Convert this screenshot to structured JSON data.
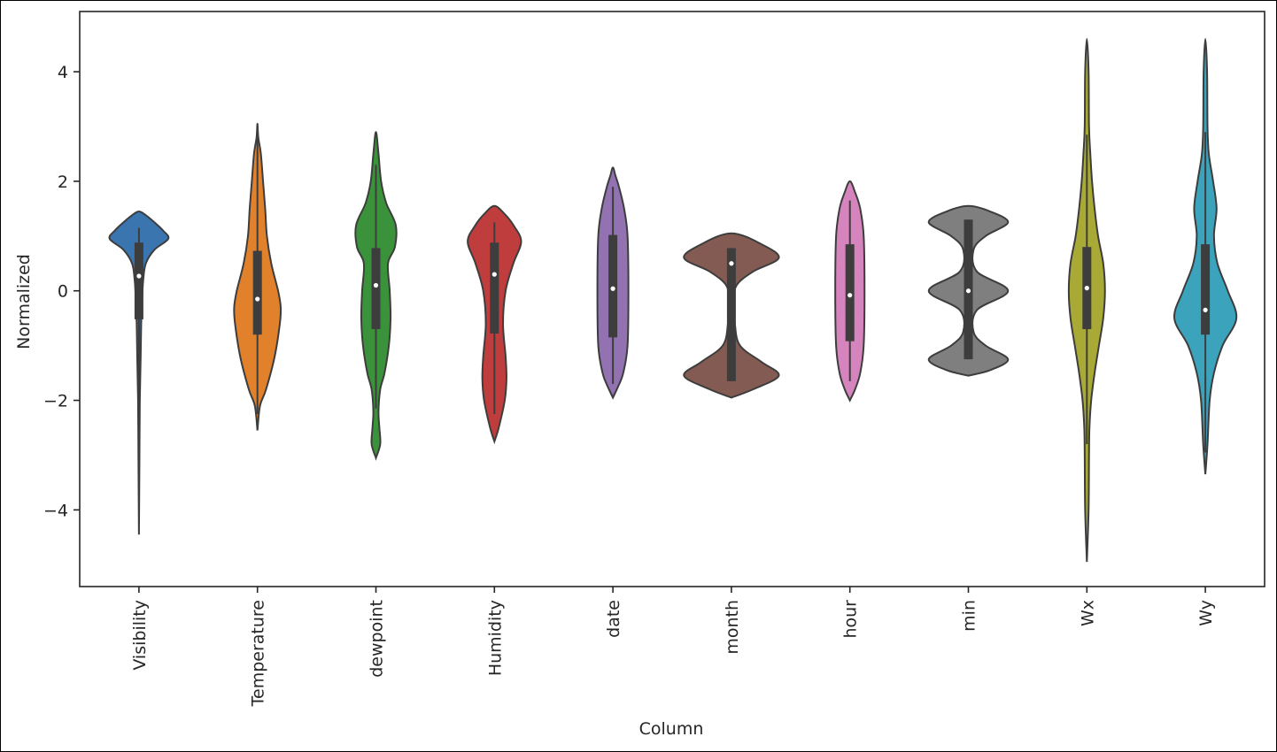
{
  "chart_data": {
    "type": "violin",
    "title": "",
    "xlabel": "Column",
    "ylabel": "Normalized",
    "ylim": [
      -5.4,
      5.1
    ],
    "yticks": [
      -4,
      -2,
      0,
      2,
      4
    ],
    "ytick_labels": [
      "−4",
      "−2",
      "0",
      "2",
      "4"
    ],
    "grid": false,
    "legend": "none",
    "categories": [
      "Visibility",
      "Temperature",
      "dewpoint",
      "Humidity",
      "date",
      "month",
      "hour",
      "min",
      "Wx",
      "Wy"
    ],
    "series": [
      {
        "color": "#3a75b0",
        "min": -4.45,
        "max": 1.45,
        "q1": -0.52,
        "median": 0.27,
        "q3": 0.88,
        "whisker_low": -2.5,
        "whisker_high": 1.15,
        "density": [
          [
            -4.45,
            0.0
          ],
          [
            -4.0,
            0.2
          ],
          [
            -3.0,
            0.6
          ],
          [
            -2.0,
            1.0
          ],
          [
            -1.2,
            2.0
          ],
          [
            -0.6,
            2.6
          ],
          [
            -0.2,
            3.5
          ],
          [
            0.2,
            5.0
          ],
          [
            0.5,
            8.0
          ],
          [
            0.75,
            18.0
          ],
          [
            0.95,
            34.0
          ],
          [
            1.1,
            28.0
          ],
          [
            1.25,
            18.0
          ],
          [
            1.38,
            8.0
          ],
          [
            1.45,
            0.0
          ]
        ]
      },
      {
        "color": "#e1812c",
        "min": -2.55,
        "max": 3.05,
        "q1": -0.8,
        "median": -0.15,
        "q3": 0.73,
        "whisker_low": -2.25,
        "whisker_high": 2.78,
        "density": [
          [
            -2.55,
            0.0
          ],
          [
            -2.1,
            3.0
          ],
          [
            -1.8,
            10.0
          ],
          [
            -1.2,
            20.0
          ],
          [
            -0.6,
            26.0
          ],
          [
            -0.3,
            27.0
          ],
          [
            0.0,
            24.0
          ],
          [
            0.5,
            16.0
          ],
          [
            1.0,
            11.0
          ],
          [
            1.5,
            9.0
          ],
          [
            2.0,
            6.5
          ],
          [
            2.5,
            4.0
          ],
          [
            2.8,
            1.0
          ],
          [
            3.05,
            0.0
          ]
        ]
      },
      {
        "color": "#3a923a",
        "min": -3.05,
        "max": 2.9,
        "q1": -0.7,
        "median": 0.1,
        "q3": 0.78,
        "whisker_low": -2.15,
        "whisker_high": 2.3,
        "density": [
          [
            -3.05,
            0.0
          ],
          [
            -2.8,
            5.0
          ],
          [
            -2.5,
            4.0
          ],
          [
            -2.2,
            3.0
          ],
          [
            -1.8,
            5.0
          ],
          [
            -1.5,
            10.0
          ],
          [
            -1.0,
            15.0
          ],
          [
            -0.5,
            17.0
          ],
          [
            0.0,
            16.0
          ],
          [
            0.5,
            14.0
          ],
          [
            0.8,
            22.0
          ],
          [
            1.2,
            23.0
          ],
          [
            1.6,
            12.0
          ],
          [
            2.0,
            6.0
          ],
          [
            2.5,
            3.0
          ],
          [
            2.9,
            0.0
          ]
        ]
      },
      {
        "color": "#c03d3e",
        "min": -2.75,
        "max": 1.55,
        "q1": -0.78,
        "median": 0.3,
        "q3": 0.88,
        "whisker_low": -2.25,
        "whisker_high": 1.25,
        "density": [
          [
            -2.75,
            0.0
          ],
          [
            -2.5,
            5.0
          ],
          [
            -2.0,
            12.0
          ],
          [
            -1.6,
            14.0
          ],
          [
            -1.2,
            13.0
          ],
          [
            -0.6,
            10.0
          ],
          [
            0.0,
            13.0
          ],
          [
            0.5,
            22.0
          ],
          [
            0.9,
            31.0
          ],
          [
            1.2,
            22.0
          ],
          [
            1.4,
            12.0
          ],
          [
            1.55,
            0.0
          ]
        ]
      },
      {
        "color": "#9372b2",
        "min": -1.95,
        "max": 2.25,
        "q1": -0.85,
        "median": 0.04,
        "q3": 1.02,
        "whisker_low": -1.7,
        "whisker_high": 1.9,
        "density": [
          [
            -1.95,
            0.0
          ],
          [
            -1.75,
            6.0
          ],
          [
            -1.5,
            12.0
          ],
          [
            -1.0,
            17.0
          ],
          [
            0.0,
            18.0
          ],
          [
            1.0,
            17.0
          ],
          [
            1.5,
            13.0
          ],
          [
            1.9,
            7.0
          ],
          [
            2.1,
            3.0
          ],
          [
            2.25,
            0.0
          ]
        ]
      },
      {
        "color": "#845b53",
        "min": -1.95,
        "max": 1.05,
        "q1": -1.65,
        "median": 0.5,
        "q3": 0.78,
        "whisker_low": -1.65,
        "whisker_high": 0.78,
        "density": [
          [
            -1.95,
            0.0
          ],
          [
            -1.8,
            25.0
          ],
          [
            -1.55,
            55.0
          ],
          [
            -1.3,
            35.0
          ],
          [
            -1.0,
            10.0
          ],
          [
            -0.6,
            4.0
          ],
          [
            -0.2,
            3.0
          ],
          [
            0.1,
            6.0
          ],
          [
            0.35,
            25.0
          ],
          [
            0.6,
            55.0
          ],
          [
            0.85,
            35.0
          ],
          [
            1.05,
            0.0
          ]
        ]
      },
      {
        "color": "#d684bd",
        "min": -2.0,
        "max": 2.0,
        "q1": -0.92,
        "median": -0.08,
        "q3": 0.85,
        "whisker_low": -1.65,
        "whisker_high": 1.65,
        "density": [
          [
            -2.0,
            0.0
          ],
          [
            -1.8,
            6.0
          ],
          [
            -1.5,
            12.0
          ],
          [
            -1.0,
            16.0
          ],
          [
            0.0,
            17.0
          ],
          [
            1.0,
            16.0
          ],
          [
            1.5,
            12.0
          ],
          [
            1.8,
            6.0
          ],
          [
            2.0,
            0.0
          ]
        ]
      },
      {
        "color": "#7f7f7f",
        "min": -1.55,
        "max": 1.55,
        "q1": -1.25,
        "median": 0.0,
        "q3": 1.3,
        "whisker_low": -1.25,
        "whisker_high": 1.3,
        "density": [
          [
            -1.55,
            0.0
          ],
          [
            -1.45,
            25.0
          ],
          [
            -1.25,
            46.0
          ],
          [
            -1.0,
            20.0
          ],
          [
            -0.75,
            6.0
          ],
          [
            -0.35,
            10.0
          ],
          [
            0.0,
            46.0
          ],
          [
            0.35,
            10.0
          ],
          [
            0.75,
            6.0
          ],
          [
            1.0,
            20.0
          ],
          [
            1.25,
            46.0
          ],
          [
            1.45,
            25.0
          ],
          [
            1.55,
            0.0
          ]
        ]
      },
      {
        "color": "#a9aa35",
        "min": -4.95,
        "max": 4.6,
        "q1": -0.7,
        "median": 0.05,
        "q3": 0.8,
        "whisker_low": -2.8,
        "whisker_high": 2.85,
        "density": [
          [
            -4.95,
            0.0
          ],
          [
            -4.0,
            2.0
          ],
          [
            -3.0,
            2.5
          ],
          [
            -2.5,
            3.0
          ],
          [
            -2.0,
            5.0
          ],
          [
            -1.5,
            9.0
          ],
          [
            -1.0,
            14.0
          ],
          [
            -0.5,
            19.0
          ],
          [
            0.0,
            21.0
          ],
          [
            0.5,
            19.0
          ],
          [
            1.0,
            13.0
          ],
          [
            1.5,
            9.0
          ],
          [
            2.0,
            6.0
          ],
          [
            2.5,
            4.0
          ],
          [
            3.0,
            2.5
          ],
          [
            4.0,
            2.0
          ],
          [
            4.6,
            0.0
          ]
        ]
      },
      {
        "color": "#3ba3bc",
        "min": -3.35,
        "max": 4.6,
        "q1": -0.8,
        "median": -0.35,
        "q3": 0.85,
        "whisker_low": -2.95,
        "whisker_high": 2.9,
        "density": [
          [
            -3.35,
            0.0
          ],
          [
            -2.8,
            2.5
          ],
          [
            -2.0,
            5.0
          ],
          [
            -1.5,
            10.0
          ],
          [
            -1.0,
            20.0
          ],
          [
            -0.5,
            36.0
          ],
          [
            0.0,
            26.0
          ],
          [
            0.5,
            14.0
          ],
          [
            1.0,
            10.0
          ],
          [
            1.5,
            13.0
          ],
          [
            2.0,
            9.0
          ],
          [
            2.5,
            4.0
          ],
          [
            3.0,
            2.5
          ],
          [
            4.0,
            2.0
          ],
          [
            4.6,
            0.0
          ]
        ]
      }
    ]
  }
}
